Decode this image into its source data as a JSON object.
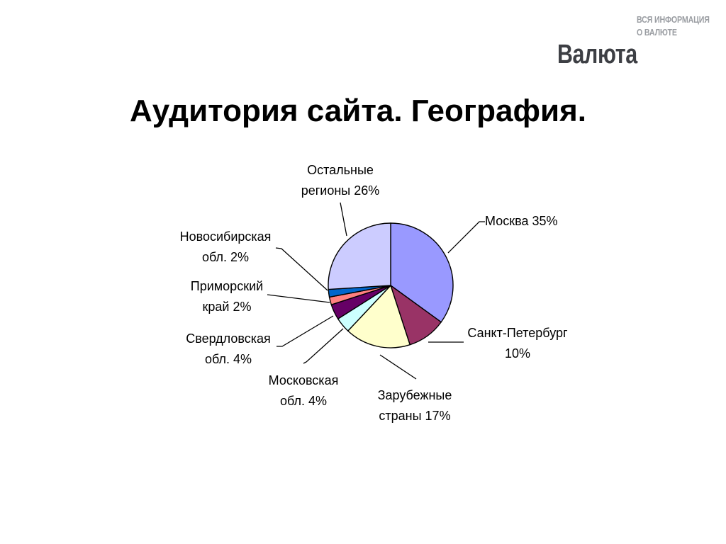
{
  "logo": {
    "tagline_1": "ВСЯ ИНФОРМАЦИЯ",
    "tagline_2": "О ВАЛЮТЕ",
    "wordmark": "Валюта"
  },
  "title": "Аудитория сайта. География.",
  "chart_data": {
    "type": "pie",
    "title": "",
    "start": "12 o'clock, clockwise",
    "slices": [
      {
        "name": "Москва",
        "label": [
          "Москва 35%"
        ],
        "value": 35,
        "color": "#9999ff"
      },
      {
        "name": "Санкт-Петербург",
        "label": [
          "Санкт-Петербург",
          "10%"
        ],
        "value": 10,
        "color": "#993366"
      },
      {
        "name": "Зарубежные страны",
        "label": [
          "Зарубежные",
          "страны 17%"
        ],
        "value": 17,
        "color": "#ffffcc"
      },
      {
        "name": "Московская обл.",
        "label": [
          "Московская",
          "обл. 4%"
        ],
        "value": 4,
        "color": "#ccffff"
      },
      {
        "name": "Свердловская обл.",
        "label": [
          "Свердловская",
          "обл. 4%"
        ],
        "value": 4,
        "color": "#660066"
      },
      {
        "name": "Приморский край",
        "label": [
          "Приморский",
          "край 2%"
        ],
        "value": 2,
        "color": "#ff8080"
      },
      {
        "name": "Новосибирская обл.",
        "label": [
          "Новосибирская",
          "обл. 2%"
        ],
        "value": 2,
        "color": "#0066cc"
      },
      {
        "name": "Остальные регионы",
        "label": [
          "Остальные",
          "регионы 26%"
        ],
        "value": 26,
        "color": "#ccccff"
      }
    ]
  }
}
